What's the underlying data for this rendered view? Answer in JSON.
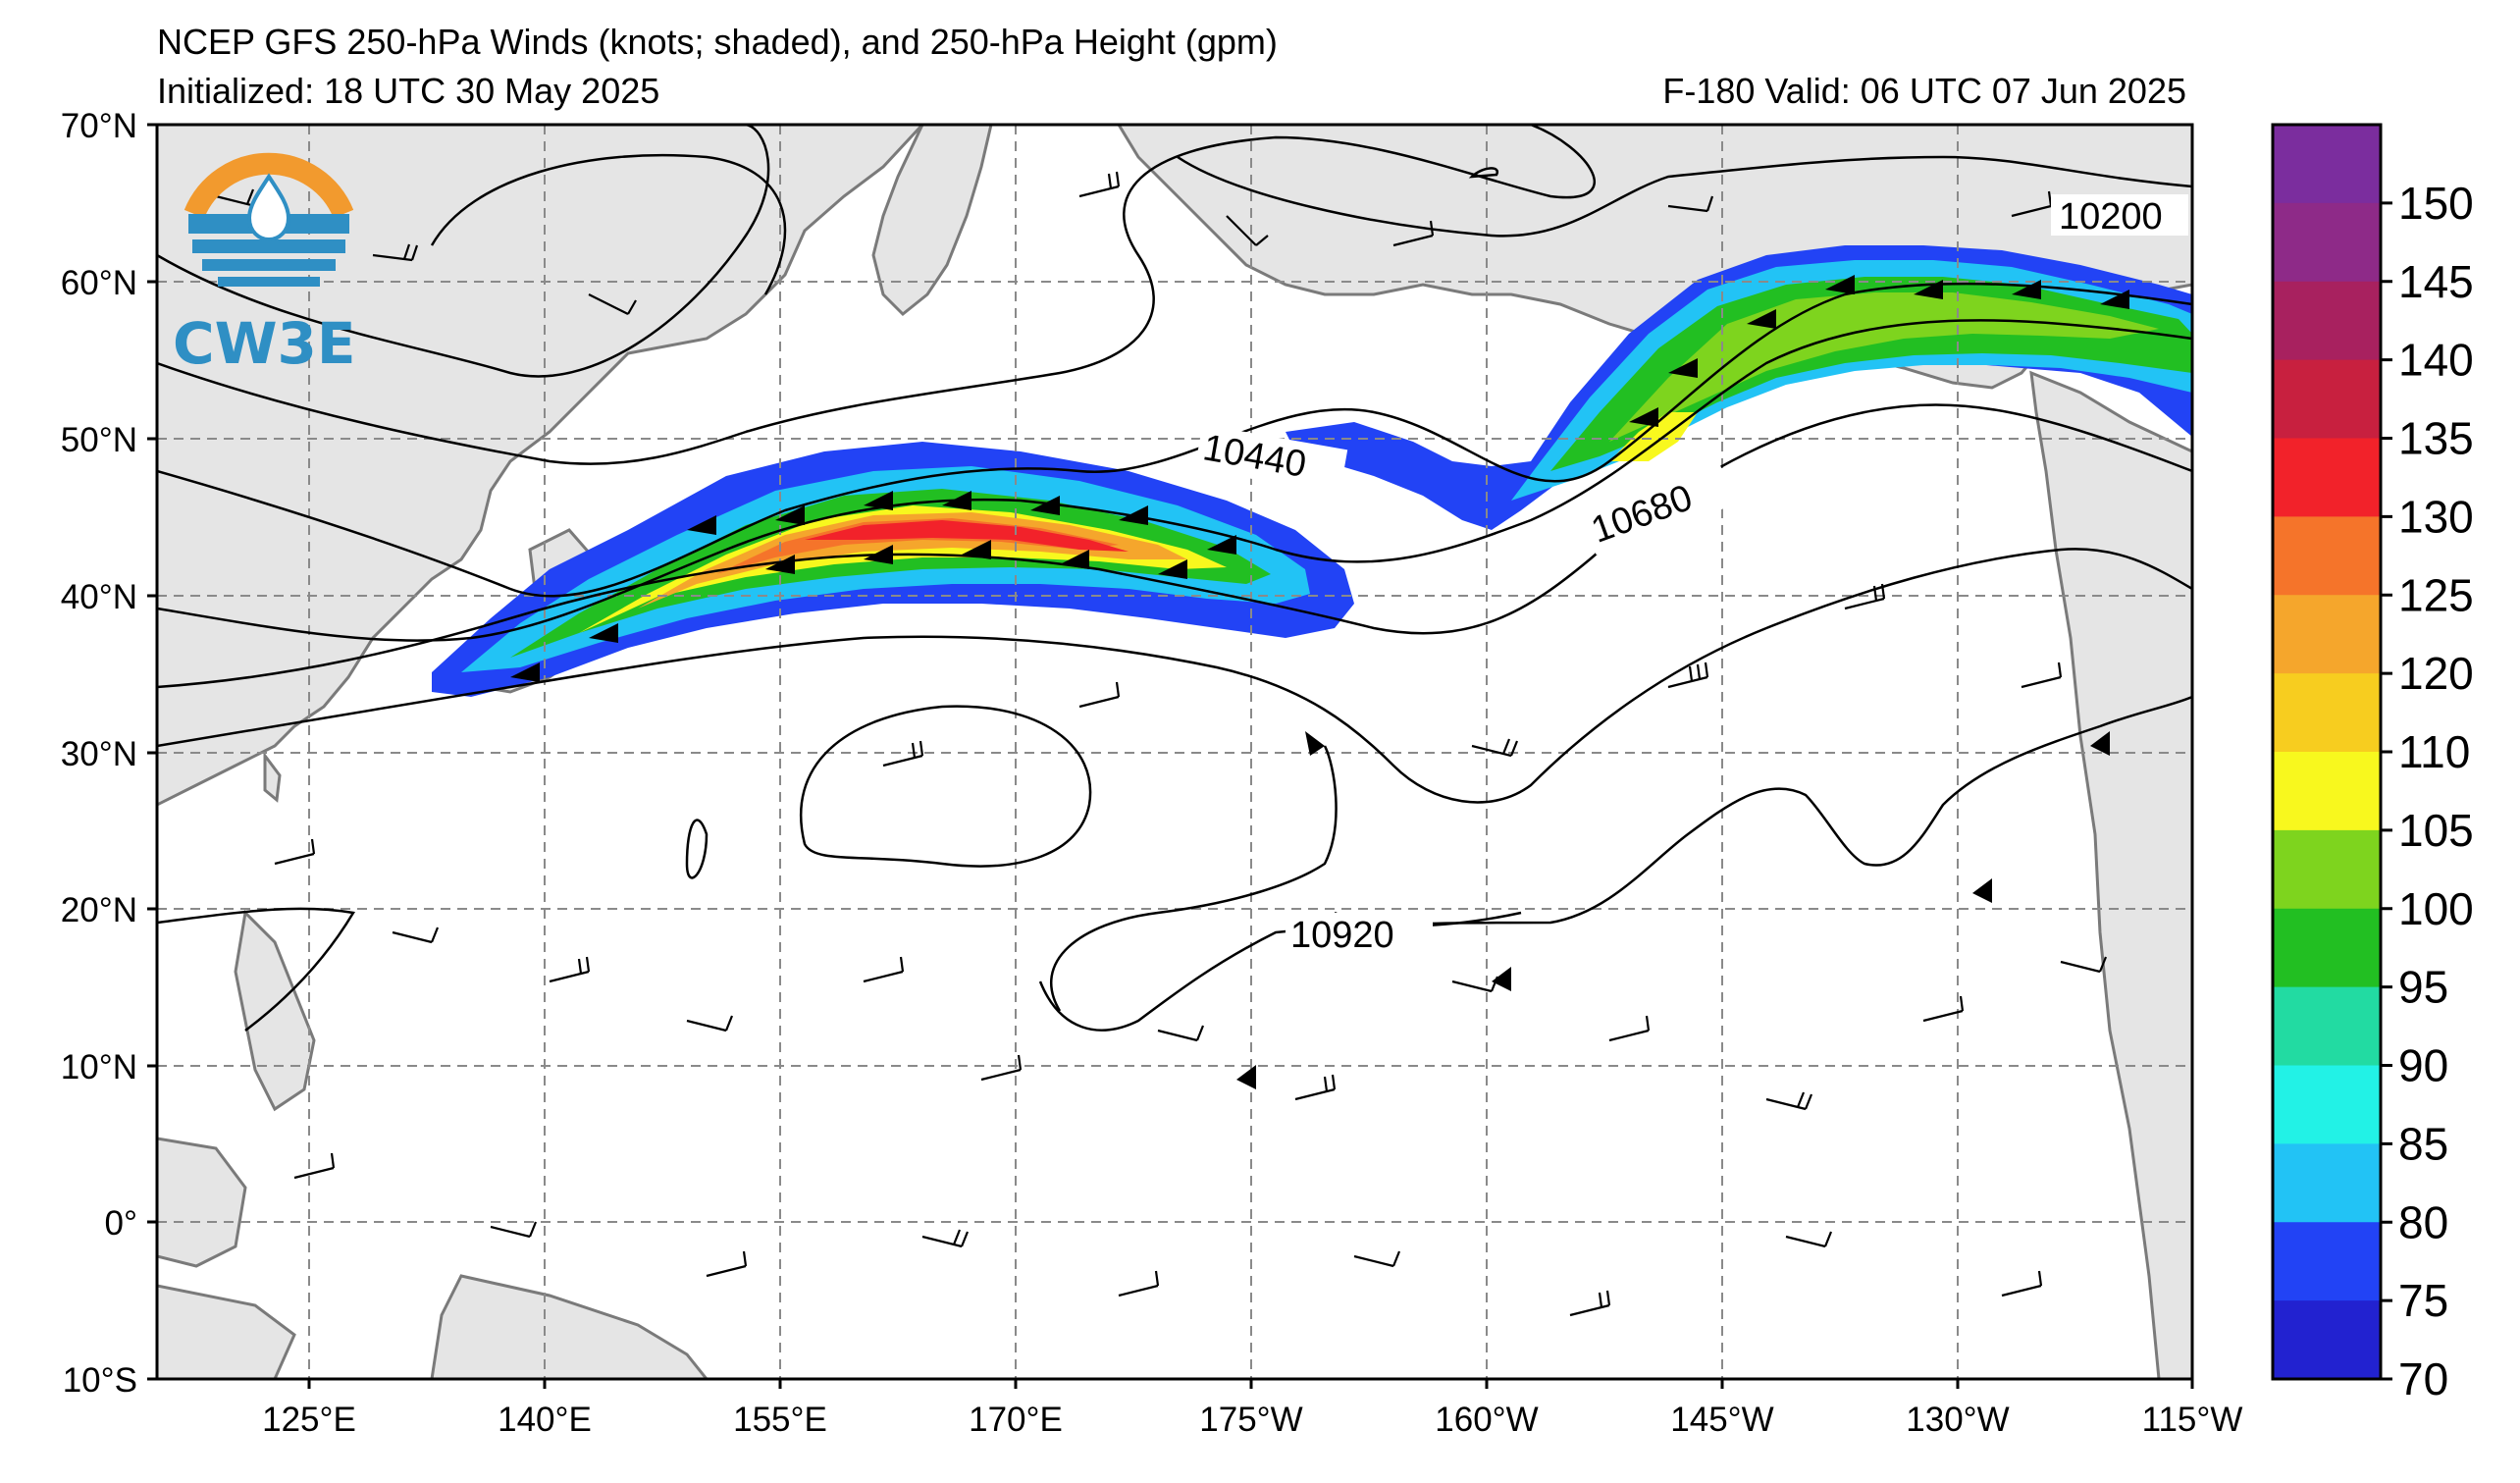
{
  "header": {
    "title_line1": "NCEP GFS 250-hPa Winds (knots; shaded), and 250-hPa Height (gpm)",
    "init_text": "Initialized: 18 UTC 30 May 2025",
    "valid_text": "F-180  Valid: 06 UTC 07 Jun 2025"
  },
  "logo": {
    "text": "CW3E",
    "colors": {
      "orange": "#f29a2e",
      "blue": "#2f8fc4"
    }
  },
  "map": {
    "lon_labels": [
      "125°E",
      "140°E",
      "155°E",
      "170°E",
      "175°W",
      "160°W",
      "145°W",
      "130°W",
      "115°W"
    ],
    "lat_labels": [
      "70°N",
      "60°N",
      "50°N",
      "40°N",
      "30°N",
      "20°N",
      "10°N",
      "0°",
      "10°S"
    ],
    "contour_labels": [
      "10200",
      "10440",
      "10680",
      "10920"
    ],
    "land_color": "#e5e5e5",
    "coast_color": "#7a7a7a"
  },
  "colorbar": {
    "ticks": [
      "150",
      "145",
      "140",
      "135",
      "130",
      "125",
      "120",
      "110",
      "105",
      "100",
      "95",
      "90",
      "85",
      "80",
      "75",
      "70"
    ],
    "colors": [
      "#7b2d9e",
      "#8e2a88",
      "#a8215f",
      "#c8203f",
      "#f2222a",
      "#f5742a",
      "#f5a62c",
      "#f7cd1f",
      "#f8f81e",
      "#7ed41e",
      "#22bf22",
      "#22dba2",
      "#22f2e6",
      "#22c3f5",
      "#2243f5",
      "#2222d0"
    ]
  }
}
